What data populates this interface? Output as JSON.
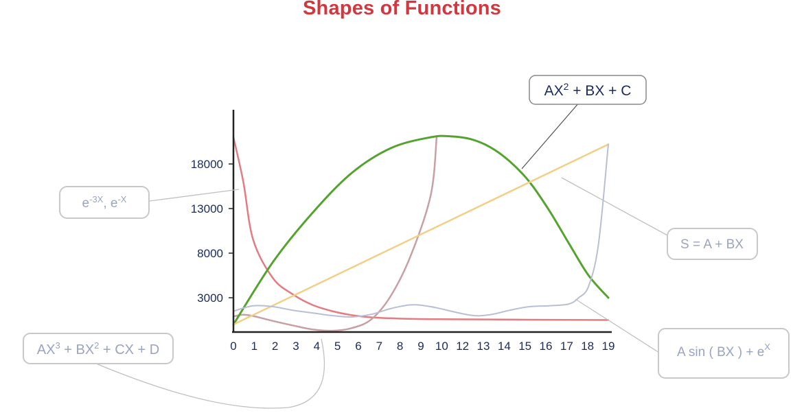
{
  "chart_data": {
    "type": "line",
    "title": "Shapes of Functions",
    "xlabel": "",
    "ylabel": "",
    "x_ticks": [
      "0",
      "1",
      "2",
      "3",
      "4",
      "5",
      "6",
      "7",
      "8",
      "9",
      "10",
      "12",
      "13",
      "14",
      "15",
      "16",
      "17",
      "18",
      "19"
    ],
    "y_ticks": [
      "18000",
      "13000",
      "8000",
      "3000"
    ],
    "grid": false,
    "series": [
      {
        "name": "e-3X, e-X",
        "color": "#e47b80",
        "points": [
          [
            0,
            21000
          ],
          [
            0.5,
            16000
          ],
          [
            1,
            9500
          ],
          [
            2,
            5200
          ],
          [
            3,
            3400
          ],
          [
            4,
            2200
          ],
          [
            5,
            1500
          ],
          [
            6,
            1050
          ],
          [
            7,
            800
          ],
          [
            8,
            700
          ],
          [
            10,
            600
          ],
          [
            19,
            500
          ]
        ]
      },
      {
        "name": "AX3 + BX2 + CX + D",
        "color": "#c89fa3",
        "points": [
          [
            0,
            900
          ],
          [
            0.5,
            1100
          ],
          [
            1,
            950
          ],
          [
            2,
            400
          ],
          [
            3,
            -100
          ],
          [
            4,
            -550
          ],
          [
            5,
            -700
          ],
          [
            6,
            -400
          ],
          [
            7,
            600
          ],
          [
            8,
            3300
          ],
          [
            9,
            7800
          ],
          [
            10,
            14500
          ],
          [
            10.3,
            21000
          ]
        ]
      },
      {
        "name": "AX2 + BX + C",
        "color": "#55a32f",
        "points": [
          [
            0,
            0
          ],
          [
            2,
            7000
          ],
          [
            4,
            12500
          ],
          [
            6,
            17000
          ],
          [
            8,
            19800
          ],
          [
            10,
            21000
          ],
          [
            11,
            21100
          ],
          [
            12,
            20800
          ],
          [
            13,
            19900
          ],
          [
            14,
            18300
          ],
          [
            15,
            16000
          ],
          [
            16,
            12800
          ],
          [
            17,
            9100
          ],
          [
            18,
            5500
          ],
          [
            19,
            3000
          ]
        ]
      },
      {
        "name": "S = A + BX",
        "color": "#f2cf86",
        "points": [
          [
            0,
            0
          ],
          [
            19,
            20200
          ]
        ]
      },
      {
        "name": "A sin ( BX ) + eX",
        "color": "#b8bed6",
        "points": [
          [
            0,
            1500
          ],
          [
            1,
            2100
          ],
          [
            2,
            2000
          ],
          [
            3,
            1600
          ],
          [
            4,
            1300
          ],
          [
            5,
            1000
          ],
          [
            6,
            850
          ],
          [
            7,
            1150
          ],
          [
            8,
            1800
          ],
          [
            9,
            2200
          ],
          [
            10,
            2000
          ],
          [
            12,
            1050
          ],
          [
            13,
            1100
          ],
          [
            14,
            1600
          ],
          [
            15,
            2000
          ],
          [
            16,
            2100
          ],
          [
            17,
            2300
          ],
          [
            17.5,
            3000
          ],
          [
            18,
            4300
          ],
          [
            18.5,
            9000
          ],
          [
            19,
            20200
          ]
        ]
      }
    ],
    "annotations": [
      "AX2 + BX + C",
      "e-3X, e-X",
      "S = A + BX",
      "AX3 + BX2 + CX + D",
      "A sin ( BX ) + eX"
    ]
  }
}
